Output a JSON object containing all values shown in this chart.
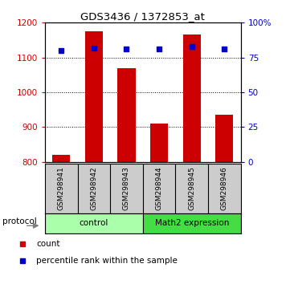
{
  "title": "GDS3436 / 1372853_at",
  "samples": [
    "GSM298941",
    "GSM298942",
    "GSM298943",
    "GSM298944",
    "GSM298945",
    "GSM298946"
  ],
  "counts": [
    820,
    1175,
    1070,
    910,
    1165,
    935
  ],
  "percentile_ranks": [
    80,
    82,
    81,
    81,
    83,
    81
  ],
  "bar_color": "#cc0000",
  "dot_color": "#0000cc",
  "ylim_left": [
    800,
    1200
  ],
  "ylim_right": [
    0,
    100
  ],
  "yticks_left": [
    800,
    900,
    1000,
    1100,
    1200
  ],
  "yticks_right": [
    0,
    25,
    50,
    75,
    100
  ],
  "grid_lines": [
    900,
    1000,
    1100
  ],
  "groups": [
    {
      "label": "control",
      "start": 0,
      "end": 3,
      "color": "#aaffaa"
    },
    {
      "label": "Math2 expression",
      "start": 3,
      "end": 6,
      "color": "#44dd44"
    }
  ],
  "protocol_label": "protocol",
  "legend_count_label": "count",
  "legend_pct_label": "percentile rank within the sample",
  "background_color": "#ffffff",
  "sample_box_color": "#cccccc",
  "bar_bottom": 800,
  "bar_width": 0.55
}
